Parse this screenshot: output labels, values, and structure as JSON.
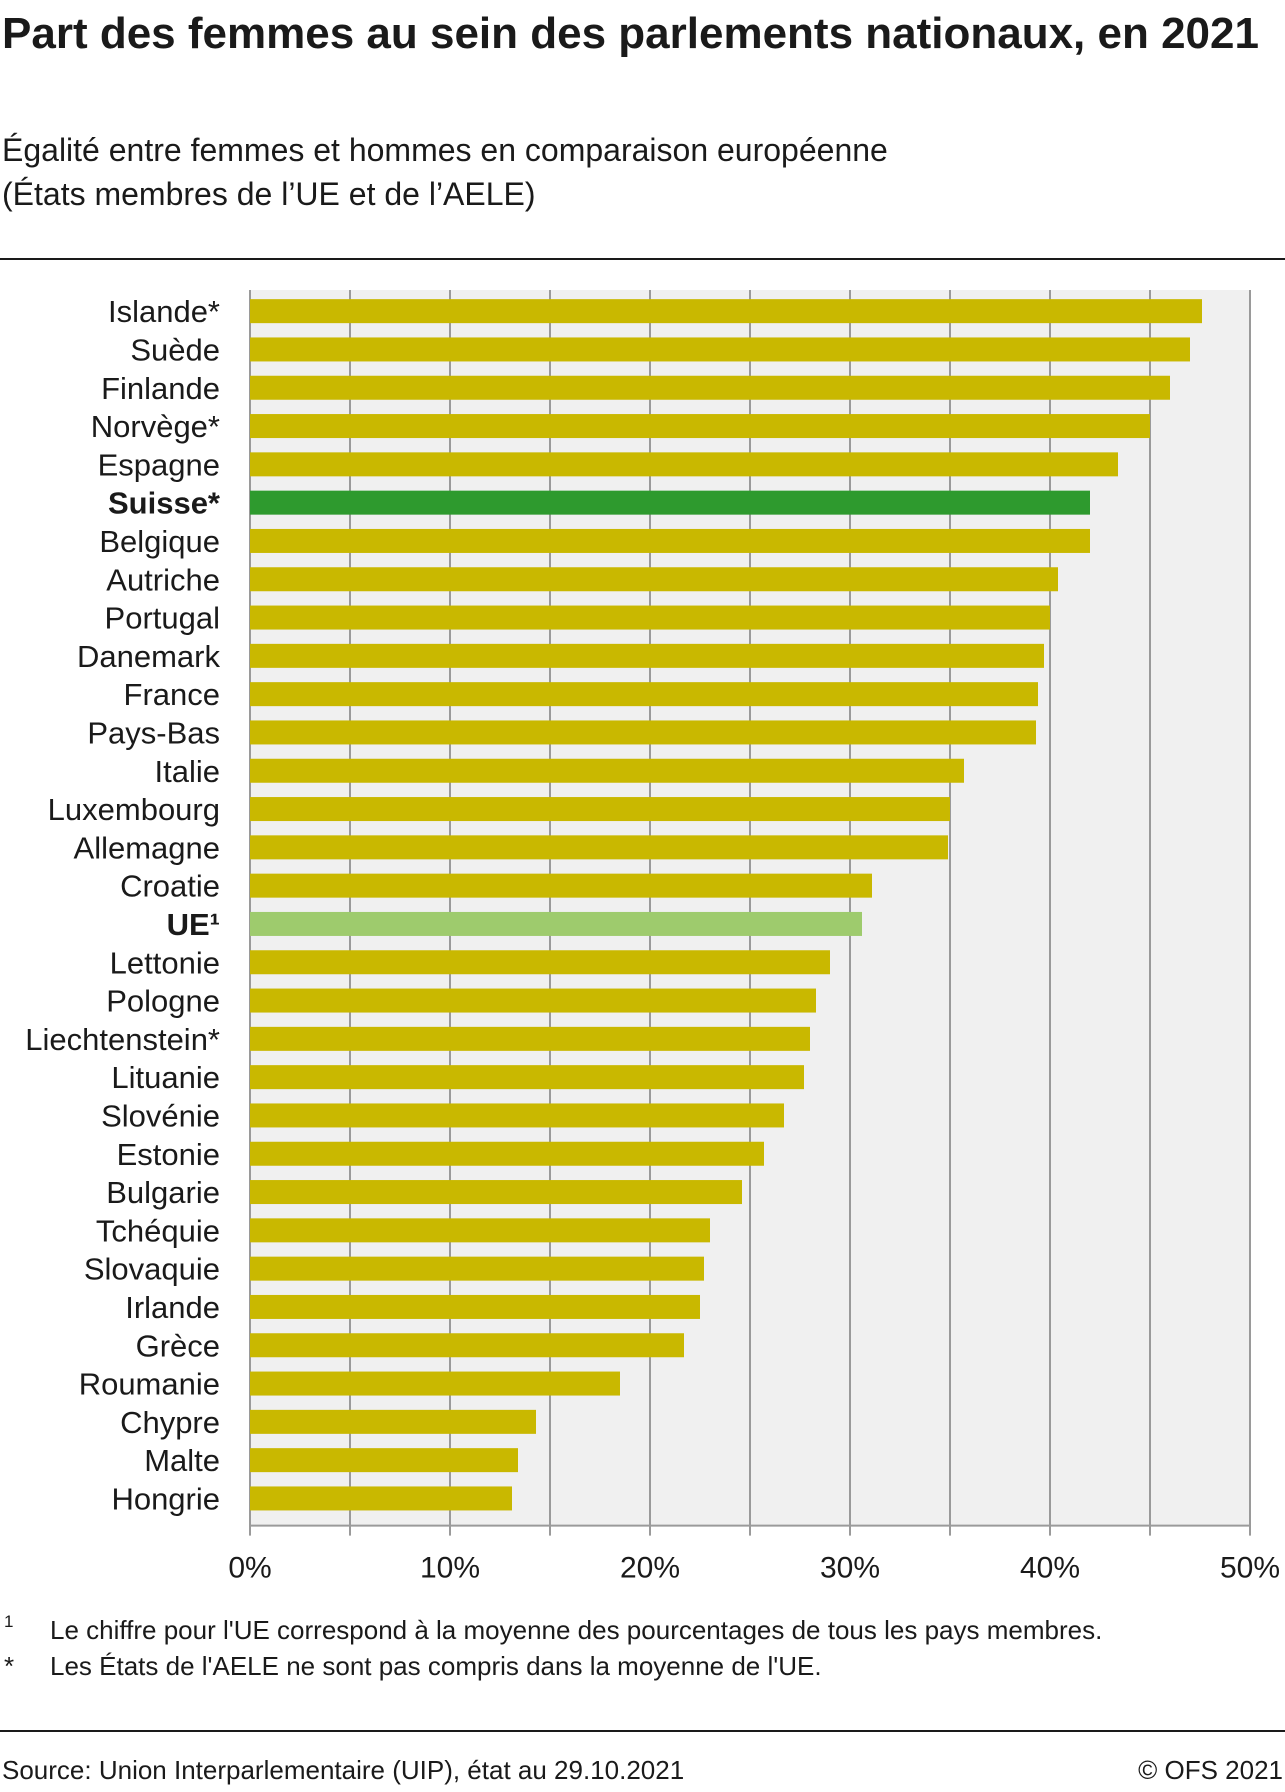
{
  "title": "Part des femmes au sein des parlements nationaux, en 2021",
  "subtitle": {
    "line1": "Égalité entre femmes et hommes en comparaison européenne",
    "line2": "(États membres de l’UE et de l’AELE)"
  },
  "colors": {
    "bar": "#c9b800",
    "highlight": "#2e9a2e",
    "eu": "#9ecb6d",
    "plot_background": "#f0f0f0",
    "grid": "#9a9a9a",
    "text": "#1a1a1a"
  },
  "chart_data": {
    "type": "bar",
    "orientation": "horizontal",
    "categories": [
      "Islande*",
      "Suède",
      "Finlande",
      "Norvège*",
      "Espagne",
      "Suisse*",
      "Belgique",
      "Autriche",
      "Portugal",
      "Danemark",
      "France",
      "Pays-Bas",
      "Italie",
      "Luxembourg",
      "Allemagne",
      "Croatie",
      "UE¹",
      "Lettonie",
      "Pologne",
      "Liechtenstein*",
      "Lituanie",
      "Slovénie",
      "Estonie",
      "Bulgarie",
      "Tchéquie",
      "Slovaquie",
      "Irlande",
      "Grèce",
      "Roumanie",
      "Chypre",
      "Malte",
      "Hongrie"
    ],
    "values": [
      47.6,
      47.0,
      46.0,
      45.0,
      43.4,
      42.0,
      42.0,
      40.4,
      40.0,
      39.7,
      39.4,
      39.3,
      35.7,
      35.0,
      34.9,
      31.1,
      30.6,
      29.0,
      28.3,
      28.0,
      27.7,
      26.7,
      25.7,
      24.6,
      23.0,
      22.7,
      22.5,
      21.7,
      18.5,
      14.3,
      13.4,
      13.1
    ],
    "highlight": {
      "Suisse*": "highlight",
      "UE¹": "eu"
    },
    "bold_categories": [
      "Suisse*",
      "UE¹"
    ],
    "xlim": [
      0,
      50
    ],
    "x_ticks": [
      0,
      10,
      20,
      30,
      40,
      50
    ],
    "x_tick_labels": [
      "0%",
      "10%",
      "20%",
      "30%",
      "40%",
      "50%"
    ],
    "minor_grid_step": 5,
    "grid": true
  },
  "footnotes": [
    {
      "mark": "1",
      "text": "Le chiffre pour l'UE correspond à la moyenne des pourcentages de tous les pays membres."
    },
    {
      "mark": "*",
      "text": "Les États de l'AELE ne sont pas compris dans la moyenne de l'UE."
    }
  ],
  "source": "Source: Union Interparlementaire (UIP), état au 29.10.2021",
  "copyright": "© OFS 2021"
}
